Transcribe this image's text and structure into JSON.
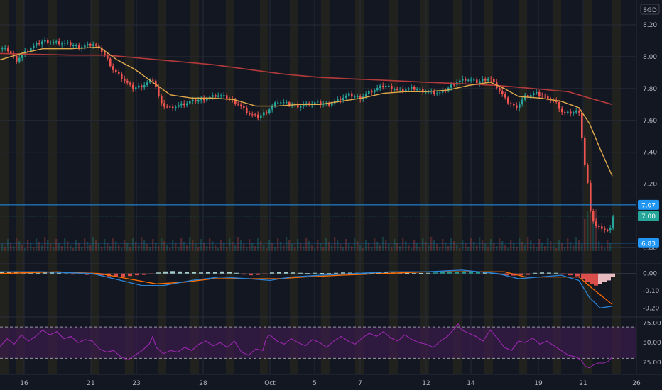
{
  "currency": "SGD",
  "colors": {
    "background": "#131722",
    "grid": "#262b36",
    "session_band": "#2e2a1c",
    "up": "#26a69a",
    "down": "#ef5350",
    "ma_fast": "#e0a94a",
    "ma_slow": "#b23a3a",
    "macd": "#2a84d8",
    "signal": "#ff6d00",
    "rsi": "#9c27b0",
    "rsi_band": "#3b1d4a",
    "hline": "#2196f3",
    "label_teal": "#26a69a",
    "label_blue": "#2196f3",
    "axis_text": "#b2b5be"
  },
  "chart_data": [
    {
      "type": "candlestick",
      "ylim": [
        6.78,
        8.24
      ],
      "y_ticks": [
        "8.20",
        "8.00",
        "7.80",
        "7.60",
        "7.40",
        "7.20",
        "7.00",
        "6.80"
      ],
      "x_ticks": [
        "16",
        "21",
        "23",
        "28",
        "Oct",
        "5",
        "7",
        "12",
        "14",
        "19",
        "21",
        "26"
      ],
      "price_lines": [
        {
          "label": "7.07",
          "value": 7.07,
          "style": "solid",
          "color": "#2196f3"
        },
        {
          "label": "7.00",
          "value": 7.0,
          "style": "dotted",
          "color": "#26a69a"
        },
        {
          "label": "6.83",
          "value": 6.83,
          "style": "solid",
          "color": "#2196f3"
        }
      ],
      "close_path": [
        [
          0,
          8.05
        ],
        [
          10,
          8.04
        ],
        [
          22,
          7.98
        ],
        [
          40,
          8.05
        ],
        [
          60,
          8.1
        ],
        [
          75,
          8.09
        ],
        [
          95,
          8.08
        ],
        [
          110,
          8.06
        ],
        [
          130,
          8.08
        ],
        [
          145,
          8.02
        ],
        [
          158,
          7.92
        ],
        [
          172,
          7.86
        ],
        [
          185,
          7.8
        ],
        [
          200,
          7.82
        ],
        [
          215,
          7.86
        ],
        [
          225,
          7.7
        ],
        [
          238,
          7.68
        ],
        [
          255,
          7.7
        ],
        [
          270,
          7.72
        ],
        [
          290,
          7.74
        ],
        [
          305,
          7.76
        ],
        [
          320,
          7.74
        ],
        [
          335,
          7.7
        ],
        [
          350,
          7.64
        ],
        [
          362,
          7.62
        ],
        [
          375,
          7.66
        ],
        [
          390,
          7.72
        ],
        [
          405,
          7.7
        ],
        [
          420,
          7.69
        ],
        [
          440,
          7.71
        ],
        [
          460,
          7.7
        ],
        [
          475,
          7.73
        ],
        [
          490,
          7.76
        ],
        [
          505,
          7.74
        ],
        [
          520,
          7.78
        ],
        [
          540,
          7.82
        ],
        [
          560,
          7.79
        ],
        [
          580,
          7.8
        ],
        [
          600,
          7.78
        ],
        [
          620,
          7.77
        ],
        [
          640,
          7.84
        ],
        [
          655,
          7.86
        ],
        [
          670,
          7.84
        ],
        [
          688,
          7.87
        ],
        [
          700,
          7.8
        ],
        [
          712,
          7.72
        ],
        [
          725,
          7.68
        ],
        [
          738,
          7.75
        ],
        [
          752,
          7.77
        ],
        [
          765,
          7.75
        ],
        [
          780,
          7.72
        ],
        [
          792,
          7.64
        ],
        [
          805,
          7.65
        ],
        [
          815,
          7.66
        ],
        [
          820,
          7.38
        ],
        [
          826,
          7.2
        ],
        [
          830,
          7.04
        ],
        [
          835,
          6.95
        ],
        [
          840,
          6.92
        ],
        [
          845,
          6.93
        ],
        [
          850,
          6.91
        ],
        [
          856,
          6.9
        ],
        [
          862,
          7.0
        ]
      ],
      "ma_fast": [
        [
          0,
          7.98
        ],
        [
          30,
          8.02
        ],
        [
          60,
          8.05
        ],
        [
          100,
          8.05
        ],
        [
          140,
          8.06
        ],
        [
          165,
          7.98
        ],
        [
          190,
          7.92
        ],
        [
          215,
          7.84
        ],
        [
          240,
          7.76
        ],
        [
          270,
          7.74
        ],
        [
          300,
          7.74
        ],
        [
          330,
          7.73
        ],
        [
          360,
          7.69
        ],
        [
          390,
          7.69
        ],
        [
          420,
          7.7
        ],
        [
          450,
          7.7
        ],
        [
          480,
          7.72
        ],
        [
          510,
          7.74
        ],
        [
          540,
          7.77
        ],
        [
          570,
          7.78
        ],
        [
          600,
          7.78
        ],
        [
          630,
          7.79
        ],
        [
          660,
          7.82
        ],
        [
          690,
          7.84
        ],
        [
          710,
          7.8
        ],
        [
          730,
          7.75
        ],
        [
          760,
          7.74
        ],
        [
          790,
          7.72
        ],
        [
          815,
          7.68
        ],
        [
          830,
          7.58
        ],
        [
          845,
          7.42
        ],
        [
          862,
          7.25
        ]
      ],
      "ma_slow": [
        [
          0,
          8.02
        ],
        [
          100,
          8.01
        ],
        [
          150,
          8.01
        ],
        [
          200,
          7.99
        ],
        [
          250,
          7.97
        ],
        [
          300,
          7.95
        ],
        [
          350,
          7.92
        ],
        [
          400,
          7.89
        ],
        [
          450,
          7.87
        ],
        [
          500,
          7.86
        ],
        [
          550,
          7.85
        ],
        [
          600,
          7.84
        ],
        [
          650,
          7.83
        ],
        [
          700,
          7.82
        ],
        [
          750,
          7.8
        ],
        [
          800,
          7.78
        ],
        [
          830,
          7.74
        ],
        [
          862,
          7.7
        ]
      ]
    },
    {
      "type": "histogram",
      "ylim": [
        -0.24,
        0.04
      ],
      "y_ticks": [
        "0.00",
        "-0.10",
        "-0.20"
      ],
      "macd": [
        [
          0,
          0.01
        ],
        [
          60,
          0.01
        ],
        [
          130,
          0.0
        ],
        [
          170,
          -0.04
        ],
        [
          200,
          -0.07
        ],
        [
          230,
          -0.07
        ],
        [
          270,
          -0.04
        ],
        [
          310,
          -0.02
        ],
        [
          350,
          -0.03
        ],
        [
          380,
          -0.04
        ],
        [
          410,
          -0.02
        ],
        [
          450,
          -0.01
        ],
        [
          500,
          0.0
        ],
        [
          550,
          0.01
        ],
        [
          600,
          0.01
        ],
        [
          650,
          0.02
        ],
        [
          700,
          0.0
        ],
        [
          730,
          -0.03
        ],
        [
          760,
          -0.02
        ],
        [
          790,
          -0.01
        ],
        [
          815,
          -0.04
        ],
        [
          830,
          -0.14
        ],
        [
          845,
          -0.2
        ],
        [
          862,
          -0.19
        ]
      ],
      "signal": [
        [
          0,
          0.0
        ],
        [
          80,
          0.01
        ],
        [
          140,
          0.0
        ],
        [
          180,
          -0.03
        ],
        [
          220,
          -0.06
        ],
        [
          260,
          -0.05
        ],
        [
          300,
          -0.03
        ],
        [
          350,
          -0.03
        ],
        [
          390,
          -0.03
        ],
        [
          430,
          -0.02
        ],
        [
          480,
          -0.01
        ],
        [
          540,
          0.0
        ],
        [
          600,
          0.01
        ],
        [
          660,
          0.01
        ],
        [
          710,
          0.01
        ],
        [
          740,
          -0.02
        ],
        [
          780,
          -0.02
        ],
        [
          815,
          -0.02
        ],
        [
          835,
          -0.09
        ],
        [
          862,
          -0.18
        ]
      ],
      "hist": [
        [
          0,
          0.01
        ],
        [
          10,
          0.008
        ],
        [
          20,
          0.012
        ],
        [
          30,
          0.006
        ],
        [
          40,
          0.01
        ],
        [
          50,
          0.004
        ],
        [
          60,
          0.006
        ],
        [
          70,
          0.008
        ],
        [
          80,
          0.004
        ],
        [
          90,
          0.0
        ],
        [
          100,
          -0.006
        ],
        [
          110,
          -0.004
        ],
        [
          120,
          -0.008
        ],
        [
          130,
          -0.006
        ],
        [
          140,
          -0.01
        ],
        [
          150,
          -0.016
        ],
        [
          160,
          -0.02
        ],
        [
          170,
          -0.018
        ],
        [
          180,
          -0.014
        ],
        [
          190,
          -0.01
        ],
        [
          200,
          -0.008
        ],
        [
          210,
          -0.004
        ],
        [
          220,
          0.006
        ],
        [
          230,
          0.012
        ],
        [
          240,
          0.014
        ],
        [
          250,
          0.012
        ],
        [
          260,
          0.01
        ],
        [
          270,
          0.008
        ],
        [
          280,
          0.006
        ],
        [
          290,
          0.008
        ],
        [
          300,
          0.01
        ],
        [
          310,
          0.012
        ],
        [
          320,
          0.008
        ],
        [
          330,
          0.004
        ],
        [
          340,
          -0.006
        ],
        [
          350,
          -0.01
        ],
        [
          360,
          -0.008
        ],
        [
          370,
          -0.004
        ],
        [
          380,
          0.006
        ],
        [
          390,
          0.008
        ],
        [
          400,
          0.01
        ],
        [
          410,
          0.006
        ],
        [
          420,
          0.004
        ],
        [
          430,
          0.002
        ],
        [
          440,
          0.004
        ],
        [
          450,
          0.003
        ],
        [
          460,
          0.002
        ],
        [
          470,
          0.004
        ],
        [
          480,
          0.006
        ],
        [
          490,
          0.005
        ],
        [
          500,
          0.004
        ],
        [
          510,
          0.003
        ],
        [
          520,
          0.004
        ],
        [
          530,
          0.006
        ],
        [
          540,
          0.008
        ],
        [
          550,
          0.006
        ],
        [
          560,
          0.004
        ],
        [
          570,
          0.003
        ],
        [
          580,
          0.002
        ],
        [
          590,
          0.003
        ],
        [
          600,
          0.004
        ],
        [
          610,
          0.006
        ],
        [
          620,
          0.008
        ],
        [
          630,
          0.01
        ],
        [
          640,
          0.012
        ],
        [
          650,
          0.014
        ],
        [
          660,
          0.012
        ],
        [
          670,
          0.008
        ],
        [
          680,
          0.006
        ],
        [
          690,
          0.004
        ],
        [
          700,
          -0.006
        ],
        [
          710,
          -0.01
        ],
        [
          720,
          -0.012
        ],
        [
          730,
          -0.01
        ],
        [
          740,
          -0.008
        ],
        [
          750,
          0.004
        ],
        [
          760,
          0.006
        ],
        [
          770,
          0.005
        ],
        [
          780,
          0.004
        ],
        [
          790,
          -0.006
        ],
        [
          800,
          -0.01
        ],
        [
          810,
          -0.016
        ],
        [
          818,
          -0.03
        ],
        [
          824,
          -0.05
        ],
        [
          830,
          -0.06
        ],
        [
          836,
          -0.07
        ],
        [
          842,
          -0.06
        ],
        [
          848,
          -0.05
        ],
        [
          854,
          -0.04
        ],
        [
          860,
          -0.02
        ]
      ]
    },
    {
      "type": "line",
      "ylim": [
        15,
        80
      ],
      "y_ticks": [
        "75.00",
        "50.00",
        "25.00"
      ],
      "band": [
        30,
        70
      ],
      "rsi": [
        [
          0,
          45
        ],
        [
          10,
          55
        ],
        [
          20,
          48
        ],
        [
          30,
          60
        ],
        [
          40,
          52
        ],
        [
          50,
          58
        ],
        [
          60,
          66
        ],
        [
          70,
          60
        ],
        [
          80,
          64
        ],
        [
          90,
          55
        ],
        [
          100,
          58
        ],
        [
          110,
          50
        ],
        [
          120,
          54
        ],
        [
          130,
          52
        ],
        [
          140,
          42
        ],
        [
          150,
          38
        ],
        [
          160,
          40
        ],
        [
          170,
          32
        ],
        [
          180,
          28
        ],
        [
          190,
          34
        ],
        [
          200,
          40
        ],
        [
          210,
          48
        ],
        [
          215,
          58
        ],
        [
          220,
          44
        ],
        [
          230,
          36
        ],
        [
          240,
          40
        ],
        [
          250,
          38
        ],
        [
          260,
          44
        ],
        [
          270,
          40
        ],
        [
          280,
          48
        ],
        [
          290,
          52
        ],
        [
          300,
          46
        ],
        [
          310,
          50
        ],
        [
          320,
          44
        ],
        [
          330,
          52
        ],
        [
          340,
          38
        ],
        [
          350,
          34
        ],
        [
          360,
          42
        ],
        [
          370,
          40
        ],
        [
          375,
          56
        ],
        [
          380,
          60
        ],
        [
          390,
          52
        ],
        [
          400,
          48
        ],
        [
          410,
          55
        ],
        [
          420,
          50
        ],
        [
          430,
          46
        ],
        [
          440,
          54
        ],
        [
          450,
          50
        ],
        [
          460,
          44
        ],
        [
          470,
          52
        ],
        [
          480,
          58
        ],
        [
          490,
          52
        ],
        [
          500,
          48
        ],
        [
          510,
          56
        ],
        [
          520,
          62
        ],
        [
          530,
          58
        ],
        [
          540,
          64
        ],
        [
          550,
          56
        ],
        [
          560,
          52
        ],
        [
          570,
          60
        ],
        [
          580,
          54
        ],
        [
          590,
          50
        ],
        [
          600,
          48
        ],
        [
          610,
          44
        ],
        [
          620,
          52
        ],
        [
          630,
          58
        ],
        [
          640,
          68
        ],
        [
          645,
          74
        ],
        [
          650,
          66
        ],
        [
          660,
          62
        ],
        [
          670,
          58
        ],
        [
          680,
          52
        ],
        [
          690,
          66
        ],
        [
          700,
          56
        ],
        [
          710,
          44
        ],
        [
          720,
          40
        ],
        [
          730,
          52
        ],
        [
          740,
          50
        ],
        [
          750,
          56
        ],
        [
          760,
          48
        ],
        [
          770,
          52
        ],
        [
          780,
          46
        ],
        [
          790,
          40
        ],
        [
          800,
          34
        ],
        [
          810,
          32
        ],
        [
          818,
          28
        ],
        [
          824,
          20
        ],
        [
          830,
          18
        ],
        [
          836,
          22
        ],
        [
          842,
          24
        ],
        [
          850,
          24
        ],
        [
          856,
          26
        ],
        [
          862,
          32
        ]
      ]
    }
  ]
}
